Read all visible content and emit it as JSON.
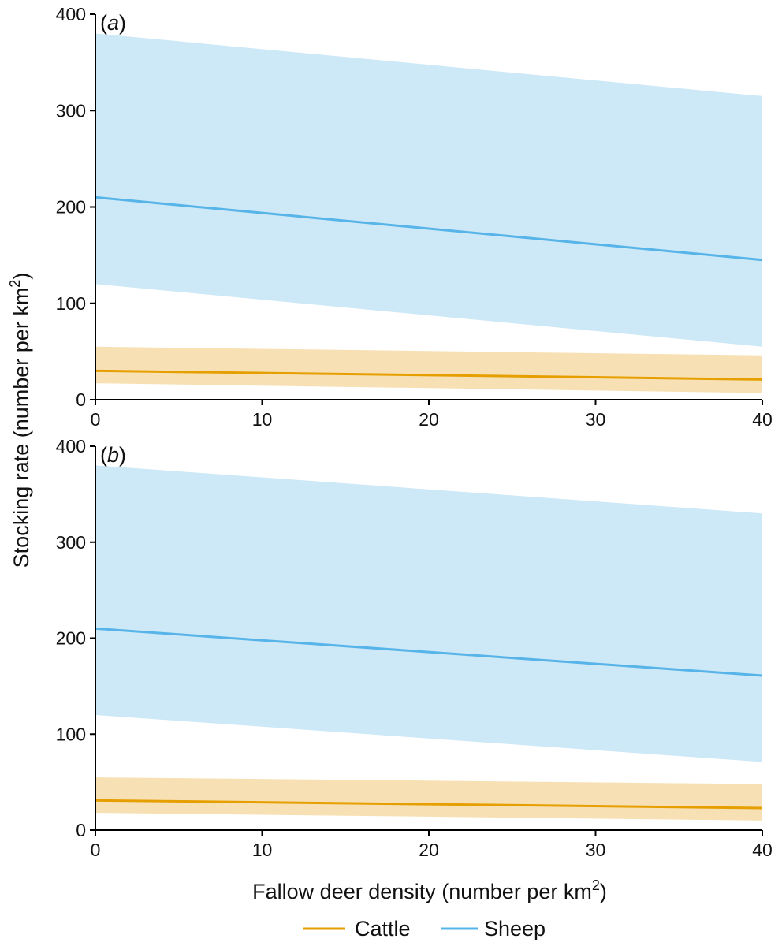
{
  "chart_data": [
    {
      "type": "line",
      "panel_label": "a",
      "x": [
        0,
        40
      ],
      "xlim": [
        0,
        40
      ],
      "ylim": [
        0,
        400
      ],
      "xticks": [
        "0",
        "10",
        "20",
        "30",
        "40"
      ],
      "yticks": [
        "0",
        "100",
        "200",
        "300",
        "400"
      ],
      "series": [
        {
          "name": "Sheep",
          "values": [
            210,
            145
          ],
          "lower": [
            120,
            55
          ],
          "upper": [
            380,
            315
          ],
          "color": "#56B4E9",
          "band_color": "#cde8f6"
        },
        {
          "name": "Cattle",
          "values": [
            30,
            21
          ],
          "lower": [
            17,
            7
          ],
          "upper": [
            55,
            46
          ],
          "color": "#E69F00",
          "band_color": "#f7e1b4"
        }
      ]
    },
    {
      "type": "line",
      "panel_label": "b",
      "x": [
        0,
        40
      ],
      "xlim": [
        0,
        40
      ],
      "ylim": [
        0,
        400
      ],
      "xticks": [
        "0",
        "10",
        "20",
        "30",
        "40"
      ],
      "yticks": [
        "0",
        "100",
        "200",
        "300",
        "400"
      ],
      "series": [
        {
          "name": "Sheep",
          "values": [
            210,
            161
          ],
          "lower": [
            120,
            71
          ],
          "upper": [
            380,
            330
          ],
          "color": "#56B4E9",
          "band_color": "#cde8f6"
        },
        {
          "name": "Cattle",
          "values": [
            31,
            23
          ],
          "lower": [
            18,
            10
          ],
          "upper": [
            55,
            48
          ],
          "color": "#E69F00",
          "band_color": "#f7e1b4"
        }
      ]
    }
  ],
  "axes": {
    "ylabel": "Stocking rate (number per km",
    "ylabel_sup": "2",
    "ylabel_end": ")",
    "xlabel": "Fallow deer density (number per km",
    "xlabel_sup": "2",
    "xlabel_end": ")"
  },
  "legend": {
    "placement": "bottom-center",
    "items": [
      {
        "label": "Cattle",
        "color": "#E69F00"
      },
      {
        "label": "Sheep",
        "color": "#56B4E9"
      }
    ]
  }
}
